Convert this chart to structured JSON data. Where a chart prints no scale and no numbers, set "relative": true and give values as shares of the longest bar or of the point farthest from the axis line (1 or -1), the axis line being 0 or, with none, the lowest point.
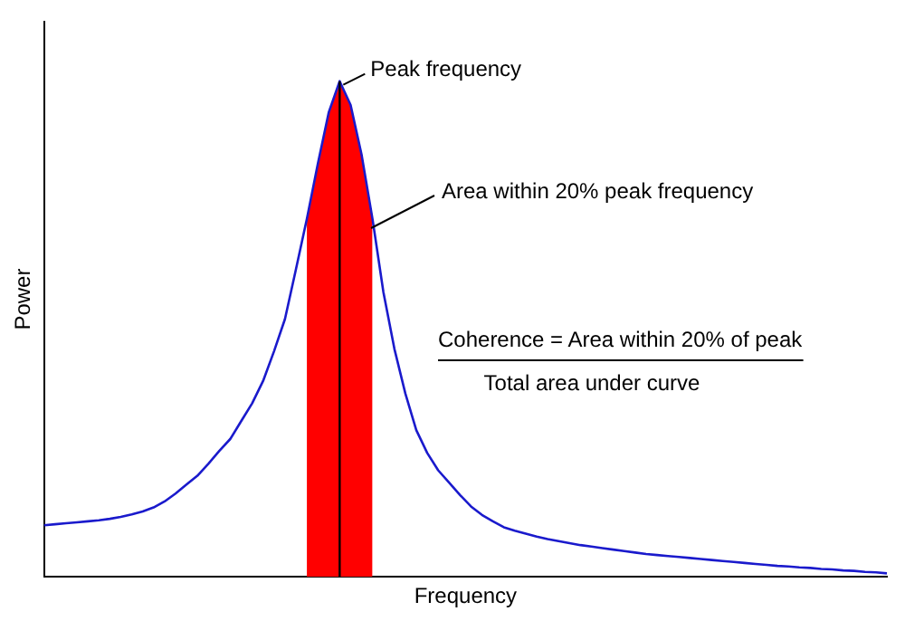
{
  "chart_data": {
    "type": "line",
    "relative": true,
    "xlabel": "Frequency",
    "ylabel": "Power",
    "grid": false,
    "legend": false,
    "marker": "none",
    "categories": [
      null,
      null,
      null,
      null,
      null,
      null,
      null,
      null,
      null,
      null,
      null,
      null,
      null,
      null,
      null,
      null,
      null,
      null,
      null,
      null,
      null,
      null,
      null,
      null,
      null,
      null,
      null,
      null,
      null,
      null,
      null,
      null,
      null,
      null,
      null,
      null,
      null,
      null,
      null,
      null,
      null,
      null,
      null,
      null,
      null,
      null,
      null,
      null,
      null,
      null,
      null,
      null,
      null,
      null,
      null,
      null,
      null,
      null,
      null,
      null,
      null,
      null,
      null,
      null,
      null,
      null,
      null,
      null,
      null,
      null,
      null,
      null,
      null,
      null,
      null,
      null,
      null,
      null
    ],
    "series": [
      {
        "color": "#1a1acc",
        "values": [
          0.104,
          0.106,
          0.108,
          0.11,
          0.112,
          0.114,
          0.117,
          0.121,
          0.126,
          0.132,
          0.14,
          0.152,
          0.168,
          0.186,
          0.204,
          0.228,
          0.254,
          0.278,
          0.314,
          0.35,
          0.395,
          0.455,
          0.52,
          0.62,
          0.722,
          0.833,
          0.937,
          1,
          0.952,
          0.852,
          0.722,
          0.574,
          0.46,
          0.37,
          0.296,
          0.25,
          0.215,
          0.19,
          0.165,
          0.142,
          0.125,
          0.112,
          0.1,
          0.093,
          0.087,
          0.081,
          0.076,
          0.072,
          0.068,
          0.064,
          0.061,
          0.058,
          0.055,
          0.052,
          0.049,
          0.046,
          0.044,
          0.042,
          0.04,
          0.038,
          0.036,
          0.034,
          0.032,
          0.03,
          0.028,
          0.026,
          0.024,
          0.022,
          0.021,
          0.019,
          0.018,
          0.016,
          0.015,
          0.013,
          0.012,
          0.01,
          0.009,
          0.007
        ],
        "lower": [
          null,
          null,
          null,
          null,
          null,
          null,
          null,
          null,
          null,
          null,
          null,
          null,
          null,
          null,
          null,
          null,
          null,
          null,
          null,
          null,
          null,
          null,
          null,
          null,
          0,
          0,
          0,
          0,
          0,
          0,
          0,
          null,
          null,
          null,
          null,
          null,
          null,
          null,
          null,
          null,
          null,
          null,
          null,
          null,
          null,
          null,
          null,
          null,
          null,
          null,
          null,
          null,
          null,
          null,
          null,
          null,
          null,
          null,
          null,
          null,
          null,
          null,
          null,
          null,
          null,
          null,
          null,
          null,
          null,
          null,
          null,
          null,
          null,
          null,
          null,
          null,
          null,
          null
        ],
        "upper": [
          null,
          null,
          null,
          null,
          null,
          null,
          null,
          null,
          null,
          null,
          null,
          null,
          null,
          null,
          null,
          null,
          null,
          null,
          null,
          null,
          null,
          null,
          null,
          null,
          0.722,
          0.833,
          0.937,
          1,
          0.952,
          0.852,
          0.722,
          null,
          null,
          null,
          null,
          null,
          null,
          null,
          null,
          null,
          null,
          null,
          null,
          null,
          null,
          null,
          null,
          null,
          null,
          null,
          null,
          null,
          null,
          null,
          null,
          null,
          null,
          null,
          null,
          null,
          null,
          null,
          null,
          null,
          null,
          null,
          null,
          null,
          null,
          null,
          null,
          null,
          null,
          null,
          null,
          null,
          null,
          null
        ]
      }
    ],
    "annotations": [
      "Peak frequency",
      "Area within 20% peak frequency",
      "Coherence = Area within 20% of peak",
      "Total area under curve"
    ]
  }
}
